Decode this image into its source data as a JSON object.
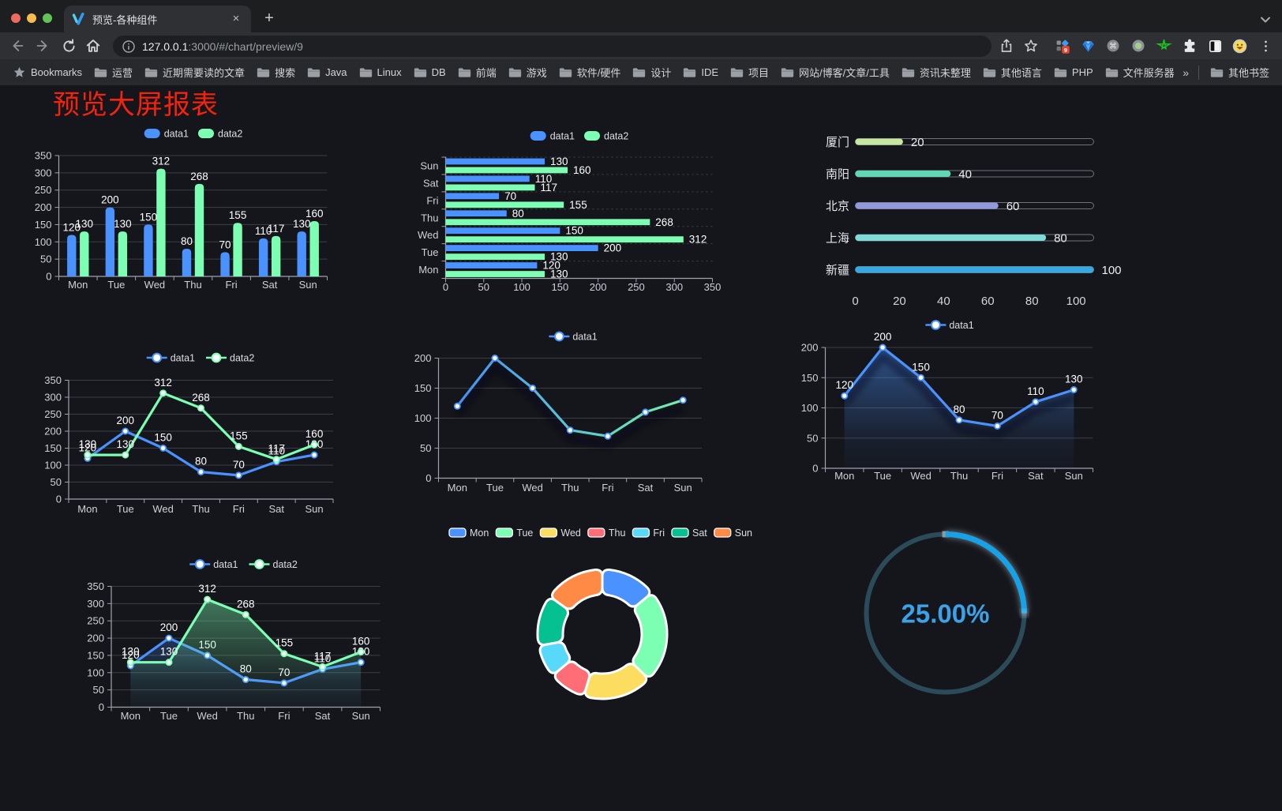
{
  "browser": {
    "traffic_lights": [
      "#ee6a5f",
      "#f5bd4f",
      "#61c454"
    ],
    "tab": {
      "title": "预览-各种组件",
      "close_label": "×"
    },
    "new_tab_label": "+",
    "url": {
      "host": "127.0.0.1",
      "rest": ":3000/#/chart/preview/9"
    },
    "bookmarks_bar": {
      "label": "Bookmarks",
      "folders": [
        "运营",
        "近期需要读的文章",
        "搜索",
        "Java",
        "Linux",
        "DB",
        "前端",
        "游戏",
        "软件/硬件",
        "设计",
        "IDE",
        "项目",
        "网站/博客/文章/工具",
        "资讯未整理",
        "其他语言",
        "PHP",
        "文件服务器"
      ],
      "overflow_chevron": "»",
      "other_bookmarks": "其他书签"
    },
    "extension_badge": "9"
  },
  "page": {
    "title": "预览大屏报表"
  },
  "chart_data": [
    {
      "id": "bar-vertical",
      "type": "bar",
      "categories": [
        "Mon",
        "Tue",
        "Wed",
        "Thu",
        "Fri",
        "Sat",
        "Sun"
      ],
      "series": [
        {
          "name": "data1",
          "color": "#4992ff",
          "values": [
            120,
            200,
            150,
            80,
            70,
            110,
            130
          ]
        },
        {
          "name": "data2",
          "color": "#7cffb2",
          "values": [
            130,
            130,
            312,
            268,
            155,
            117,
            160
          ]
        }
      ],
      "ylim": [
        0,
        350
      ],
      "ytick_step": 50,
      "legend_position": "top",
      "grid": true,
      "labels": true
    },
    {
      "id": "bar-horizontal",
      "type": "hbar",
      "categories": [
        "Mon",
        "Tue",
        "Wed",
        "Thu",
        "Fri",
        "Sat",
        "Sun"
      ],
      "series": [
        {
          "name": "data1",
          "color": "#4992ff",
          "values": [
            120,
            200,
            150,
            80,
            70,
            110,
            130
          ]
        },
        {
          "name": "data2",
          "color": "#7cffb2",
          "values": [
            130,
            130,
            312,
            268,
            155,
            117,
            160
          ]
        }
      ],
      "xlim": [
        0,
        350
      ],
      "xtick_step": 50,
      "legend_position": "top",
      "grid": true,
      "labels": true
    },
    {
      "id": "progress-bars",
      "type": "progress",
      "categories": [
        "厦门",
        "南阳",
        "北京",
        "上海",
        "新疆"
      ],
      "values": [
        20,
        40,
        60,
        80,
        100
      ],
      "colors": [
        "#c6e7a0",
        "#5fd8b3",
        "#9198de",
        "#7edcd8",
        "#38a9e0"
      ],
      "xticks": [
        0,
        20,
        40,
        60,
        80,
        100
      ],
      "xlim": [
        0,
        100
      ],
      "labels": true
    },
    {
      "id": "line-two-series",
      "type": "line",
      "categories": [
        "Mon",
        "Tue",
        "Wed",
        "Thu",
        "Fri",
        "Sat",
        "Sun"
      ],
      "series": [
        {
          "name": "data1",
          "color": "#4992ff",
          "values": [
            120,
            200,
            150,
            80,
            70,
            110,
            130
          ]
        },
        {
          "name": "data2",
          "color": "#7cffb2",
          "values": [
            130,
            130,
            312,
            268,
            155,
            117,
            160
          ]
        }
      ],
      "ylim": [
        0,
        350
      ],
      "ytick_step": 50,
      "legend_position": "top",
      "grid": true,
      "labels": true
    },
    {
      "id": "line-gradient",
      "type": "line",
      "categories": [
        "Mon",
        "Tue",
        "Wed",
        "Thu",
        "Fri",
        "Sat",
        "Sun"
      ],
      "series": [
        {
          "name": "data1",
          "color": "#4992ff",
          "gradient": [
            "#3f86fa",
            "#55aee6",
            "#63d8c2",
            "#7cf0aa"
          ],
          "values": [
            120,
            200,
            150,
            80,
            70,
            110,
            130
          ]
        }
      ],
      "ylim": [
        0,
        200
      ],
      "ytick_step": 50,
      "legend_position": "top",
      "grid": true,
      "labels": false,
      "shadow": true
    },
    {
      "id": "area-single",
      "type": "area",
      "categories": [
        "Mon",
        "Tue",
        "Wed",
        "Thu",
        "Fri",
        "Sat",
        "Sun"
      ],
      "series": [
        {
          "name": "data1",
          "color": "#4992ff",
          "values": [
            120,
            200,
            150,
            80,
            70,
            110,
            130
          ]
        }
      ],
      "ylim": [
        0,
        200
      ],
      "ytick_step": 50,
      "legend_position": "top",
      "grid": true,
      "labels": true,
      "shadow": true
    },
    {
      "id": "area-two-series",
      "type": "area",
      "categories": [
        "Mon",
        "Tue",
        "Wed",
        "Thu",
        "Fri",
        "Sat",
        "Sun"
      ],
      "series": [
        {
          "name": "data1",
          "color": "#4992ff",
          "values": [
            120,
            200,
            150,
            80,
            70,
            110,
            130
          ]
        },
        {
          "name": "data2",
          "color": "#7cffb2",
          "values": [
            130,
            130,
            312,
            268,
            155,
            117,
            160
          ]
        }
      ],
      "ylim": [
        0,
        350
      ],
      "ytick_step": 50,
      "legend_position": "top",
      "grid": true,
      "labels": true
    },
    {
      "id": "donut-pie",
      "type": "pie",
      "categories": [
        "Mon",
        "Tue",
        "Wed",
        "Thu",
        "Fri",
        "Sat",
        "Sun"
      ],
      "values": [
        120,
        200,
        150,
        80,
        70,
        110,
        130
      ],
      "colors": [
        "#4992ff",
        "#7cffb2",
        "#fddd60",
        "#ff6e76",
        "#58d9f9",
        "#05c091",
        "#ff8a45"
      ],
      "legend_position": "top"
    },
    {
      "id": "gauge-progress",
      "type": "gauge",
      "value": 25,
      "label": "25.00%",
      "color": "#17a2e8",
      "track_color": "#2c4b59"
    }
  ]
}
